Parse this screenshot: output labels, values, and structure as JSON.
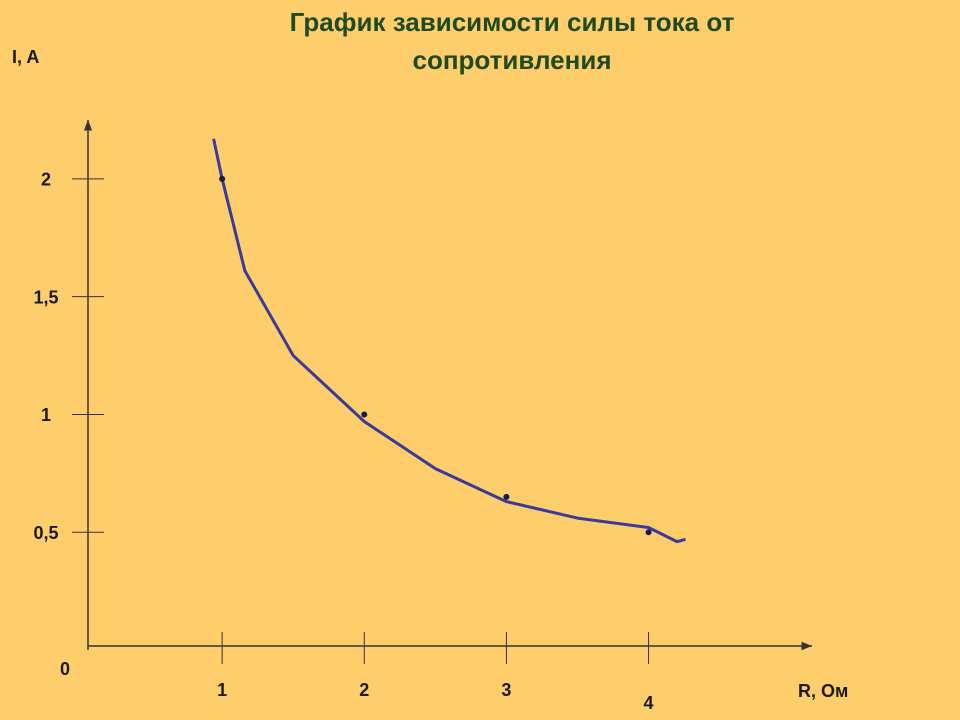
{
  "chart_data": {
    "type": "scatter",
    "title_lines": [
      "График зависимости силы тока от",
      "сопротивления"
    ],
    "y_label": "I, A",
    "x_label": "R, Ом",
    "origin_label": "0",
    "xlim": [
      0,
      5.15
    ],
    "ylim": [
      0,
      2.25
    ],
    "xticks": [
      1,
      2,
      3,
      4
    ],
    "yticks": [
      {
        "value": 0.5,
        "label": "0,5"
      },
      1,
      {
        "value": 1.5,
        "label": "1,5"
      },
      2
    ],
    "series": [
      {
        "name": "points",
        "color": "#1a1a40",
        "x": [
          1,
          2,
          3,
          4
        ],
        "values": [
          2,
          1,
          0.65,
          0.5
        ],
        "style": "points"
      },
      {
        "name": "curve",
        "color": "#3b3a9a",
        "x": [
          0.94,
          1,
          1.16,
          1.5,
          2,
          2.5,
          3,
          3.5,
          4,
          4.2,
          4.26
        ],
        "values": [
          2.17,
          2.0,
          1.61,
          1.25,
          0.97,
          0.77,
          0.63,
          0.56,
          0.52,
          0.46,
          0.47
        ],
        "style": "line"
      }
    ]
  }
}
